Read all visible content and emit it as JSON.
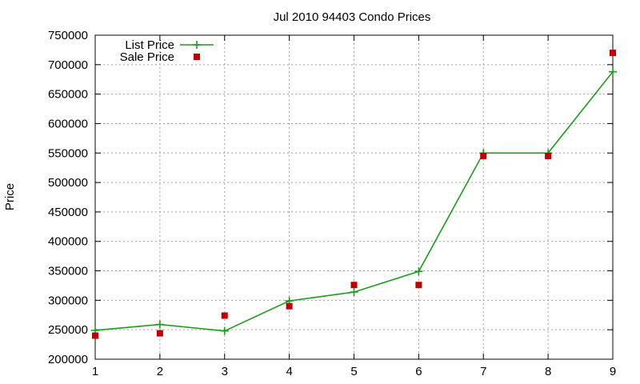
{
  "chart_data": {
    "type": "line",
    "title": "Jul 2010 94403 Condo Prices",
    "xlabel": "",
    "ylabel": "Price",
    "xlim": [
      1,
      9
    ],
    "ylim": [
      200000,
      750000
    ],
    "x_ticks": [
      "1",
      "2",
      "3",
      "4",
      "5",
      "6",
      "7",
      "8",
      "9"
    ],
    "y_ticks": [
      "200000",
      "250000",
      "300000",
      "350000",
      "400000",
      "450000",
      "500000",
      "550000",
      "600000",
      "650000",
      "700000",
      "750000"
    ],
    "grid": true,
    "legend_position": "top-left",
    "x": [
      1,
      2,
      3,
      4,
      5,
      6,
      7,
      8,
      9
    ],
    "series": [
      {
        "name": "List Price",
        "style": "line with plus markers",
        "color": "#1a9e1a",
        "values": [
          249000,
          259000,
          248000,
          299000,
          314000,
          349000,
          550000,
          550000,
          688000
        ]
      },
      {
        "name": "Sale Price",
        "style": "square markers",
        "color": "#c00000",
        "values": [
          240000,
          244000,
          274000,
          290000,
          326000,
          326000,
          545000,
          545000,
          720000
        ]
      }
    ]
  }
}
